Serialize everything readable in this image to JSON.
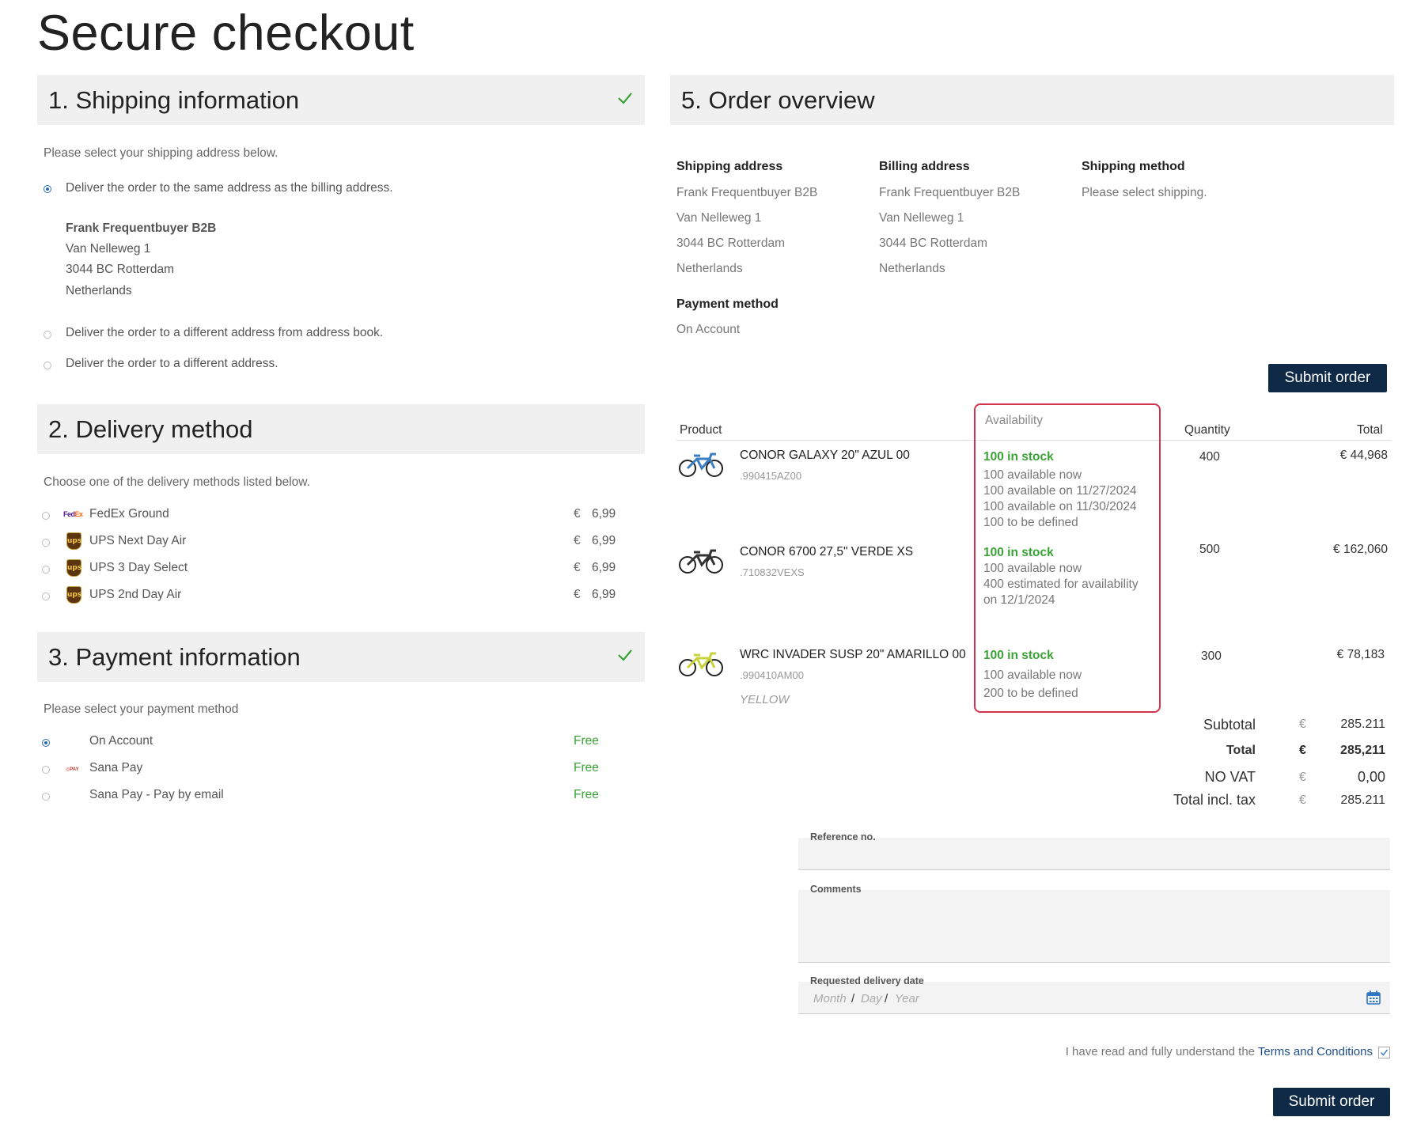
{
  "page": {
    "title": "Secure checkout"
  },
  "shipping": {
    "heading": "1.  Shipping information",
    "intro": "Please select your shipping address below.",
    "options": [
      "Deliver the order to the same address as the billing address.",
      "Deliver the order to a different address from address book.",
      "Deliver the order to a different address."
    ],
    "address": [
      "Frank Frequentbuyer B2B",
      "Van Nelleweg 1",
      "3044 BC Rotterdam",
      "Netherlands"
    ]
  },
  "delivery": {
    "heading": "2.  Delivery method",
    "intro": "Choose one of the delivery methods listed below.",
    "methods": [
      {
        "name": "FedEx Ground",
        "currency": "€",
        "price": "6,99",
        "icon": "fedex-icon"
      },
      {
        "name": "UPS Next Day Air",
        "currency": "€",
        "price": "6,99",
        "icon": "ups-icon"
      },
      {
        "name": "UPS 3 Day Select",
        "currency": "€",
        "price": "6,99",
        "icon": "ups-icon"
      },
      {
        "name": "UPS 2nd Day Air",
        "currency": "€",
        "price": "6,99",
        "icon": "ups-icon"
      }
    ]
  },
  "payment": {
    "heading": "3.  Payment information",
    "intro": "Please select your payment method",
    "methods": [
      {
        "name": "On Account",
        "price": "Free"
      },
      {
        "name": "Sana Pay",
        "price": "Free",
        "icon": "sana-pay-icon"
      },
      {
        "name": "Sana Pay - Pay by email",
        "price": "Free"
      }
    ]
  },
  "overview": {
    "heading": "5.  Order overview",
    "shipping_address_label": "Shipping address",
    "billing_address_label": "Billing address",
    "shipping_method_label": "Shipping method",
    "shipping_address": [
      "Frank Frequentbuyer B2B",
      "Van Nelleweg 1",
      "3044 BC Rotterdam",
      "Netherlands"
    ],
    "billing_address": [
      "Frank Frequentbuyer B2B",
      "Van Nelleweg 1",
      "3044 BC Rotterdam",
      "Netherlands"
    ],
    "shipping_method": "Please select shipping.",
    "payment_method_label": "Payment method",
    "payment_method": "On Account",
    "submit_label": "Submit order"
  },
  "table": {
    "headers": {
      "product": "Product",
      "availability": "Availability",
      "quantity": "Quantity",
      "total": "Total"
    },
    "rows": [
      {
        "name": "CONOR GALAXY 20\" AZUL 00",
        "sku": ".990415AZ00",
        "stock": "100 in stock",
        "avail": [
          "100 available now",
          "100 available on 11/27/2024",
          "100 available on 11/30/2024",
          "100 to be defined"
        ],
        "qty": "400",
        "total": "€  44,968"
      },
      {
        "name": "CONOR 6700 27,5\" VERDE XS",
        "sku": ".710832VEXS",
        "stock": "100 in stock",
        "avail": [
          "100 available now",
          "400 estimated for availability",
          "on 12/1/2024"
        ],
        "qty": "500",
        "total": "€  162,060"
      },
      {
        "name": "WRC INVADER SUSP 20\" AMARILLO 00",
        "sku": ".990410AM00",
        "variant": "YELLOW",
        "stock": "100 in stock",
        "avail": [
          "100 available now",
          "200 to be defined"
        ],
        "qty": "300",
        "total": "€ 78,183"
      }
    ]
  },
  "summary": {
    "subtotal_label": "Subtotal",
    "subtotal_cur": "€",
    "subtotal": "285.211",
    "total_label": "Total",
    "total_cur": "€",
    "total": "285,211",
    "vat_label": "NO VAT",
    "vat_cur": "€",
    "vat": "0,00",
    "incl_label": "Total incl. tax",
    "incl_cur": "€",
    "incl": "285.211"
  },
  "form": {
    "reference_label": "Reference no.",
    "comments_label": "Comments",
    "date_label": "Requested delivery date",
    "month": "Month",
    "day": "Day",
    "year": "Year",
    "terms_prefix": "I have read and fully understand the ",
    "terms_link": "Terms and Conditions",
    "submit_label": "Submit order"
  },
  "colors": {
    "accent": "#0e2a47",
    "success": "#3aa335",
    "highlight": "#d3334d",
    "link": "#1f4f8a"
  }
}
